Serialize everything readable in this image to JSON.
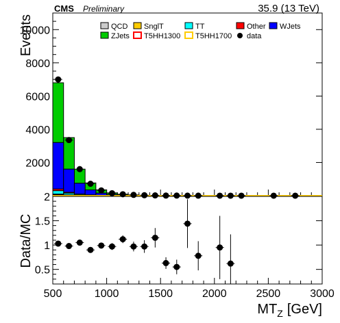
{
  "chart_data": [
    {
      "type": "bar",
      "stacked": true,
      "header": {
        "experiment": "CMS",
        "status": "Preliminary",
        "lumi": "35.9 (13 TeV)"
      },
      "ylabel": "Events",
      "xlim": [
        500,
        3000
      ],
      "ylim": [
        0,
        11000
      ],
      "yticks": [
        2000,
        4000,
        6000,
        8000,
        10000
      ],
      "bin_edges": [
        500,
        600,
        700,
        800,
        900,
        1000,
        1100,
        1200,
        1300,
        1400,
        1500,
        1600,
        1700,
        1800,
        1900,
        2000,
        2100,
        2200,
        2300,
        2400,
        2500,
        2600,
        2700,
        2800,
        2900,
        3000
      ],
      "legend": {
        "position": "top-right",
        "entries": [
          {
            "label": "QCD",
            "color": "#cccccc",
            "style": "box"
          },
          {
            "label": "SnglT",
            "color": "#ffcc00",
            "style": "box"
          },
          {
            "label": "TT",
            "color": "#00ffff",
            "style": "box"
          },
          {
            "label": "Other",
            "color": "#ff0000",
            "style": "box"
          },
          {
            "label": "WJets",
            "color": "#0000ff",
            "style": "box"
          },
          {
            "label": "ZJets",
            "color": "#00cc00",
            "style": "box"
          },
          {
            "label": "T5HH1300",
            "color": "#ff0000",
            "style": "line"
          },
          {
            "label": "T5HH1700",
            "color": "#ffcc00",
            "style": "line"
          },
          {
            "label": "data",
            "color": "#000000",
            "style": "marker"
          }
        ]
      },
      "series": [
        {
          "name": "QCD",
          "color": "#cccccc",
          "values": [
            60,
            30,
            15,
            8,
            4,
            2,
            1,
            1,
            0,
            0,
            0,
            0,
            0,
            0,
            0,
            0,
            0,
            0,
            0,
            0,
            0,
            0,
            0,
            0,
            0
          ]
        },
        {
          "name": "SnglT",
          "color": "#ffcc00",
          "values": [
            40,
            20,
            10,
            5,
            3,
            2,
            1,
            0,
            0,
            0,
            0,
            0,
            0,
            0,
            0,
            0,
            0,
            0,
            0,
            0,
            0,
            0,
            0,
            0,
            0
          ]
        },
        {
          "name": "TT",
          "color": "#00ffff",
          "values": [
            200,
            100,
            50,
            25,
            12,
            6,
            3,
            2,
            1,
            0,
            0,
            0,
            0,
            0,
            0,
            0,
            0,
            0,
            0,
            0,
            0,
            0,
            0,
            0,
            0
          ]
        },
        {
          "name": "Other",
          "color": "#ff0000",
          "values": [
            100,
            50,
            25,
            12,
            6,
            3,
            2,
            1,
            0,
            0,
            0,
            0,
            0,
            0,
            0,
            0,
            0,
            0,
            0,
            0,
            0,
            0,
            0,
            0,
            0
          ]
        },
        {
          "name": "WJets",
          "color": "#0000ff",
          "values": [
            2800,
            1400,
            650,
            300,
            130,
            60,
            30,
            15,
            8,
            4,
            2,
            1,
            1,
            0,
            0,
            0,
            0,
            0,
            0,
            0,
            0,
            0,
            0,
            0,
            0
          ]
        },
        {
          "name": "ZJets",
          "color": "#00cc00",
          "values": [
            3600,
            1900,
            850,
            420,
            200,
            100,
            55,
            30,
            16,
            9,
            5,
            3,
            2,
            1,
            1,
            0,
            0,
            0,
            0,
            0,
            0,
            0,
            0,
            0,
            0
          ]
        },
        {
          "name": "T5HH1300",
          "color": "#ff0000",
          "style": "line",
          "values": [
            1,
            1,
            1,
            1,
            1,
            1,
            1,
            1,
            1,
            1,
            1,
            1,
            1,
            1,
            1,
            1,
            1,
            1,
            1,
            1,
            1,
            1,
            1,
            1,
            1
          ]
        },
        {
          "name": "T5HH1700",
          "color": "#ffcc00",
          "style": "line",
          "values": [
            1,
            1,
            1,
            1,
            1,
            1,
            1,
            1,
            1,
            1,
            1,
            1,
            1,
            1,
            1,
            1,
            1,
            1,
            1,
            1,
            1,
            1,
            1,
            1,
            1
          ]
        }
      ],
      "data_points": {
        "name": "data",
        "x": [
          550,
          650,
          750,
          850,
          950,
          1050,
          1150,
          1250,
          1350,
          1450,
          1550,
          1650,
          1750,
          1850,
          2050,
          2150,
          2250,
          2550,
          2750
        ],
        "y": [
          7000,
          3350,
          1600,
          720,
          320,
          150,
          90,
          50,
          30,
          20,
          10,
          8,
          5,
          3,
          2,
          1,
          1,
          1,
          1
        ]
      }
    },
    {
      "type": "scatter",
      "xlabel": "MT",
      "xlabel_sub": "Z",
      "xlabel_unit": "[GeV]",
      "ylabel": "Data/MC",
      "xlim": [
        500,
        3000
      ],
      "ylim": [
        0.2,
        2.0
      ],
      "xticks": [
        500,
        1000,
        1500,
        2000,
        2500,
        3000
      ],
      "yticks": [
        0.5,
        1,
        1.5,
        2
      ],
      "ytick_labels": [
        "0.5",
        "1",
        "1.5",
        "2"
      ],
      "points": {
        "x": [
          550,
          650,
          750,
          850,
          950,
          1050,
          1150,
          1250,
          1350,
          1450,
          1550,
          1650,
          1750,
          1850,
          2050,
          2150
        ],
        "y": [
          1.03,
          0.98,
          1.05,
          0.9,
          0.99,
          0.97,
          1.12,
          0.97,
          0.97,
          1.15,
          0.63,
          0.55,
          1.44,
          0.78,
          0.95,
          0.62
        ],
        "yerr": [
          0.03,
          0.03,
          0.04,
          0.05,
          0.06,
          0.07,
          0.08,
          0.1,
          0.13,
          0.2,
          0.12,
          0.15,
          0.5,
          0.3,
          0.65,
          0.6
        ]
      }
    }
  ]
}
